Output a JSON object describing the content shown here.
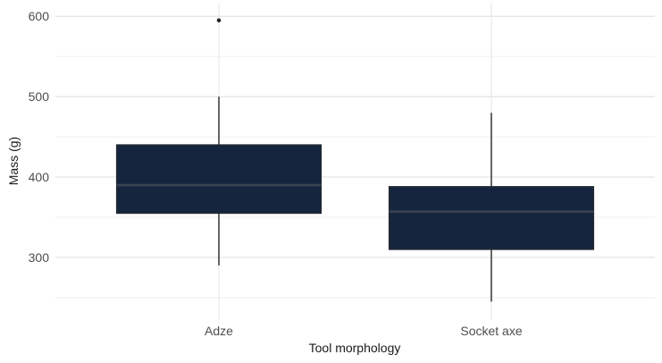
{
  "chart_data": {
    "type": "boxplot",
    "title": "",
    "xlabel": "Tool morphology",
    "ylabel": "Mass (g)",
    "categories": [
      "Adze",
      "Socket axe"
    ],
    "series": [
      {
        "name": "Adze",
        "min": 290,
        "q1": 355,
        "median": 390,
        "q3": 440,
        "max": 500,
        "outliers": [
          595
        ]
      },
      {
        "name": "Socket axe",
        "min": 245,
        "q1": 310,
        "median": 357,
        "q3": 388,
        "max": 480,
        "outliers": []
      }
    ],
    "ylim": [
      222,
      617
    ],
    "yticks": [
      300,
      400,
      500,
      600
    ],
    "yticks_minor": [
      250,
      350,
      450,
      550
    ],
    "grid": true,
    "legend": false,
    "colors": {
      "box_fill": "#16253e",
      "box_border": "#23293366",
      "box_border_solid": "#232933",
      "median_line": "#3a4250",
      "whisker": "#262626",
      "outlier": "#262626",
      "grid_major": "#e3e3e3",
      "grid_minor": "#efefef",
      "grid_vertical": "#e8e8e8",
      "tick_text": "#4d4d4d",
      "title_text": "#1a1a1a",
      "background": "#ffffff"
    }
  }
}
